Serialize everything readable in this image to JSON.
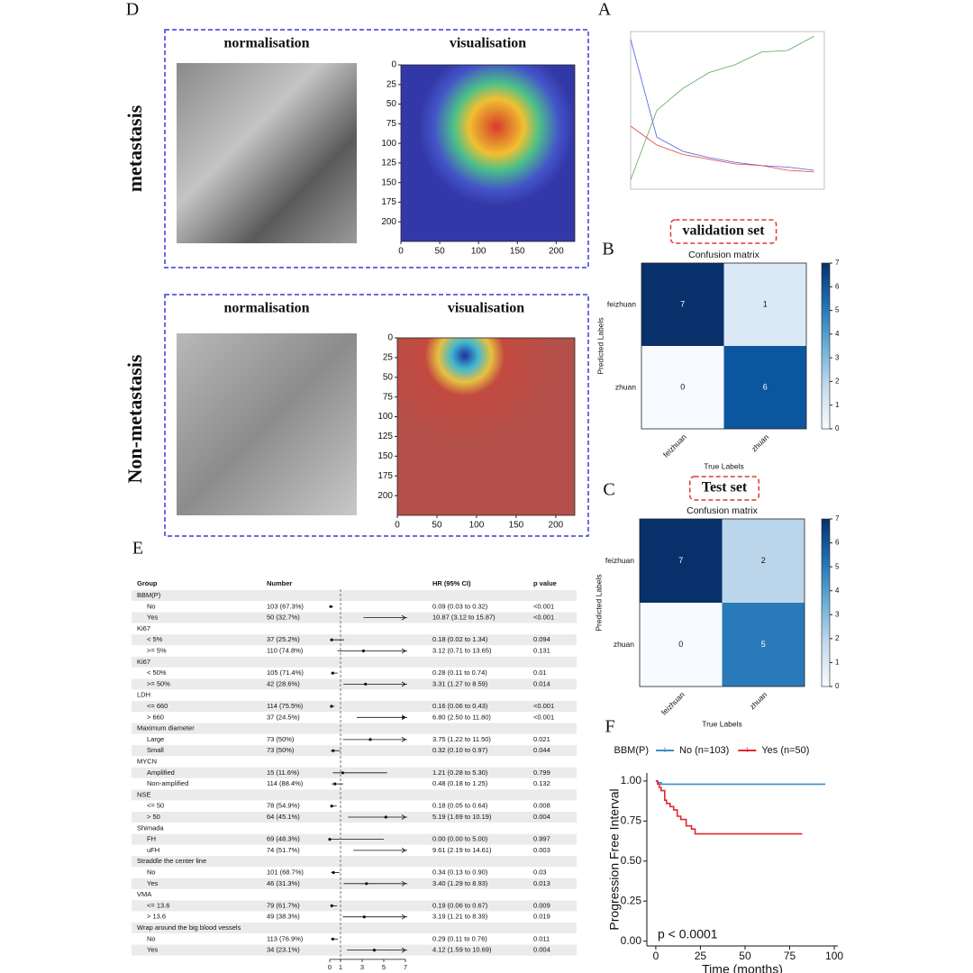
{
  "chart_data": [
    {
      "type": "gradcam",
      "panel": "D",
      "row_label": "metastasis",
      "titles": [
        "normalisation",
        "visualisation"
      ],
      "xlim": [
        0,
        224
      ],
      "ylim": [
        0,
        225
      ],
      "xticks": [
        0,
        50,
        100,
        150,
        200
      ],
      "yticks": [
        0,
        25,
        50,
        75,
        100,
        125,
        150,
        175,
        200
      ]
    },
    {
      "type": "gradcam",
      "row_label": "Non-metastasis",
      "titles": [
        "normalisation",
        "visualisation"
      ],
      "xlim": [
        0,
        224
      ],
      "ylim": [
        0,
        225
      ],
      "xticks": [
        0,
        50,
        100,
        150,
        200
      ],
      "yticks": [
        0,
        25,
        50,
        75,
        100,
        125,
        150,
        175,
        200
      ]
    },
    {
      "type": "line",
      "panel": "A",
      "x": [
        0,
        1,
        2,
        3,
        4,
        5,
        6,
        7
      ],
      "xlim": [
        0,
        7.4
      ],
      "ylim": [
        0,
        1
      ],
      "series": [
        {
          "color": "#4a5de8",
          "values": [
            0.95,
            0.33,
            0.24,
            0.2,
            0.17,
            0.15,
            0.14,
            0.12
          ]
        },
        {
          "color": "#e8423a",
          "values": [
            0.4,
            0.28,
            0.22,
            0.19,
            0.16,
            0.15,
            0.12,
            0.11
          ]
        },
        {
          "color": "#5aa85a",
          "values": [
            0.06,
            0.5,
            0.64,
            0.74,
            0.79,
            0.87,
            0.88,
            0.97
          ]
        }
      ]
    },
    {
      "type": "heatmap",
      "panel": "B",
      "heading": "validation set",
      "title": "Confusion matrix",
      "x_label": "True Labels",
      "y_label": "Predicted Labels",
      "categories": [
        "feizhuan",
        "zhuan"
      ],
      "values": [
        [
          7,
          1
        ],
        [
          0,
          6
        ]
      ],
      "colormap": "Blues",
      "zlim": [
        0,
        7
      ],
      "zticks": [
        0,
        1,
        2,
        3,
        4,
        5,
        6,
        7
      ]
    },
    {
      "type": "heatmap",
      "panel": "C",
      "heading": "Test set",
      "title": "Confusion matrix",
      "x_label": "True Labels",
      "y_label": "Predicted Labels",
      "categories": [
        "feizhuan",
        "zhuan"
      ],
      "values": [
        [
          7,
          2
        ],
        [
          0,
          5
        ]
      ],
      "colormap": "Blues",
      "zlim": [
        0,
        7
      ],
      "zticks": [
        0,
        1,
        2,
        3,
        4,
        5,
        6,
        7
      ]
    },
    {
      "type": "forest",
      "panel": "E",
      "columns": [
        "Group",
        "Number",
        "HR (95% CI)",
        "p value"
      ],
      "xlim": [
        0,
        7
      ],
      "xticks": [
        0,
        1,
        3,
        5,
        7
      ],
      "reference": 1,
      "groups": [
        {
          "name": "BBM(P)",
          "rows": [
            {
              "name": "No",
              "number": "103 (67.3%)",
              "hr": 0.09,
              "lo": 0.03,
              "hi": 0.32,
              "ci_label": "0.09 (0.03 to 0.32)",
              "p": "<0.001"
            },
            {
              "name": "Yes",
              "number": "50 (32.7%)",
              "hr": 10.87,
              "lo": 3.12,
              "hi": 15.87,
              "ci_label": "10.87 (3.12 to 15.87)",
              "p": "<0.001"
            }
          ]
        },
        {
          "name": "Ki67",
          "rows": [
            {
              "name": "< 5%",
              "number": "37 (25.2%)",
              "hr": 0.18,
              "lo": 0.02,
              "hi": 1.34,
              "ci_label": "0.18 (0.02 to 1.34)",
              "p": "0.094"
            },
            {
              "name": ">= 5%",
              "number": "110 (74.8%)",
              "hr": 3.12,
              "lo": 0.71,
              "hi": 13.65,
              "ci_label": "3.12 (0.71 to 13.65)",
              "p": "0.131"
            }
          ]
        },
        {
          "name": "Ki67",
          "rows": [
            {
              "name": "< 50%",
              "number": "105 (71.4%)",
              "hr": 0.28,
              "lo": 0.11,
              "hi": 0.74,
              "ci_label": "0.28 (0.11 to 0.74)",
              "p": "0.01"
            },
            {
              "name": ">= 50%",
              "number": "42 (28.6%)",
              "hr": 3.31,
              "lo": 1.27,
              "hi": 8.59,
              "ci_label": "3.31 (1.27 to 8.59)",
              "p": "0.014"
            }
          ]
        },
        {
          "name": "LDH",
          "rows": [
            {
              "name": "<= 660",
              "number": "114 (75.5%)",
              "hr": 0.16,
              "lo": 0.06,
              "hi": 0.43,
              "ci_label": "0.16 (0.06 to 0.43)",
              "p": "<0.001"
            },
            {
              "name": "> 660",
              "number": "37 (24.5%)",
              "hr": 6.8,
              "lo": 2.5,
              "hi": 11.8,
              "ci_label": "6.80 (2.50 to 11.80)",
              "p": "<0.001"
            }
          ]
        },
        {
          "name": "Maximum diameter",
          "rows": [
            {
              "name": "Large",
              "number": "73 (50%)",
              "hr": 3.75,
              "lo": 1.22,
              "hi": 11.5,
              "ci_label": "3.75 (1.22 to 11.50)",
              "p": "0.021"
            },
            {
              "name": "Small",
              "number": "73 (50%)",
              "hr": 0.32,
              "lo": 0.1,
              "hi": 0.97,
              "ci_label": "0.32 (0.10 to 0.97)",
              "p": "0.044"
            }
          ]
        },
        {
          "name": "MYCN",
          "rows": [
            {
              "name": "Amplified",
              "number": "15 (11.6%)",
              "hr": 1.21,
              "lo": 0.28,
              "hi": 5.3,
              "ci_label": "1.21 (0.28 to 5.30)",
              "p": "0.799"
            },
            {
              "name": "Non-amplified",
              "number": "114 (88.4%)",
              "hr": 0.48,
              "lo": 0.18,
              "hi": 1.25,
              "ci_label": "0.48 (0.18 to 1.25)",
              "p": "0.132"
            }
          ]
        },
        {
          "name": "NSE",
          "rows": [
            {
              "name": "<= 50",
              "number": "78 (54.9%)",
              "hr": 0.18,
              "lo": 0.05,
              "hi": 0.64,
              "ci_label": "0.18 (0.05 to 0.64)",
              "p": "0.008"
            },
            {
              "name": "> 50",
              "number": "64 (45.1%)",
              "hr": 5.19,
              "lo": 1.69,
              "hi": 10.19,
              "ci_label": "5.19 (1.69 to 10.19)",
              "p": "0.004"
            }
          ]
        },
        {
          "name": "Shimada",
          "rows": [
            {
              "name": "FH",
              "number": "69 (48.3%)",
              "hr": 0.0,
              "lo": 0.0,
              "hi": 5.0,
              "ci_label": "0.00 (0.00 to 5.00)",
              "p": "0.997"
            },
            {
              "name": "uFH",
              "number": "74 (51.7%)",
              "hr": 9.61,
              "lo": 2.19,
              "hi": 14.61,
              "ci_label": "9.61 (2.19 to 14.61)",
              "p": "0.003"
            }
          ]
        },
        {
          "name": "Straddle the center line",
          "rows": [
            {
              "name": "No",
              "number": "101 (68.7%)",
              "hr": 0.34,
              "lo": 0.13,
              "hi": 0.9,
              "ci_label": "0.34 (0.13 to 0.90)",
              "p": "0.03"
            },
            {
              "name": "Yes",
              "number": "46 (31.3%)",
              "hr": 3.4,
              "lo": 1.29,
              "hi": 8.93,
              "ci_label": "3.40 (1.29 to 8.93)",
              "p": "0.013"
            }
          ]
        },
        {
          "name": "VMA",
          "rows": [
            {
              "name": "<= 13.6",
              "number": "79 (61.7%)",
              "hr": 0.19,
              "lo": 0.06,
              "hi": 0.67,
              "ci_label": "0.19 (0.06 to 0.67)",
              "p": "0.009"
            },
            {
              "name": "> 13.6",
              "number": "49 (38.3%)",
              "hr": 3.19,
              "lo": 1.21,
              "hi": 8.39,
              "ci_label": "3.19 (1.21 to 8.39)",
              "p": "0.019"
            }
          ]
        },
        {
          "name": "Wrap around the big blood vessels",
          "rows": [
            {
              "name": "No",
              "number": "113 (76.9%)",
              "hr": 0.29,
              "lo": 0.11,
              "hi": 0.76,
              "ci_label": "0.29 (0.11 to 0.76)",
              "p": "0.011"
            },
            {
              "name": "Yes",
              "number": "34 (23.1%)",
              "hr": 4.12,
              "lo": 1.59,
              "hi": 10.69,
              "ci_label": "4.12 (1.59 to 10.69)",
              "p": "0.004"
            }
          ]
        }
      ]
    },
    {
      "type": "km",
      "panel": "F",
      "legend_title": "BBM(P)",
      "x_label": "Time (months)",
      "y_label": "Progression Free Interval",
      "annotation": "p < 0.0001",
      "xlim": [
        -5,
        102
      ],
      "ylim": [
        -0.03,
        1.05
      ],
      "xticks": [
        0,
        25,
        50,
        75,
        100
      ],
      "yticks": [
        {
          "value": 0,
          "label": "0.00"
        },
        {
          "value": 0.25,
          "label": "0.25"
        },
        {
          "value": 0.5,
          "label": "0.50"
        },
        {
          "value": 0.75,
          "label": "0.75"
        },
        {
          "value": 1,
          "label": "1.00"
        }
      ],
      "series": [
        {
          "name": "No (n=103)",
          "color": "#3d8ec3",
          "x": [
            0,
            1,
            1,
            3,
            3,
            95
          ],
          "values": [
            1,
            1,
            0.99,
            0.99,
            0.98,
            0.98
          ]
        },
        {
          "name": "Yes (n=50)",
          "color": "#e3262a",
          "x": [
            0,
            1,
            1,
            2,
            2,
            3,
            3,
            5,
            5,
            6,
            6,
            8,
            8,
            10,
            10,
            12,
            12,
            14,
            14,
            17,
            17,
            20,
            20,
            22,
            22,
            82
          ],
          "values": [
            1,
            1,
            0.98,
            0.98,
            0.96,
            0.96,
            0.94,
            0.94,
            0.88,
            0.88,
            0.86,
            0.86,
            0.84,
            0.84,
            0.82,
            0.82,
            0.78,
            0.78,
            0.76,
            0.76,
            0.72,
            0.72,
            0.7,
            0.7,
            0.67,
            0.67
          ]
        }
      ]
    }
  ]
}
